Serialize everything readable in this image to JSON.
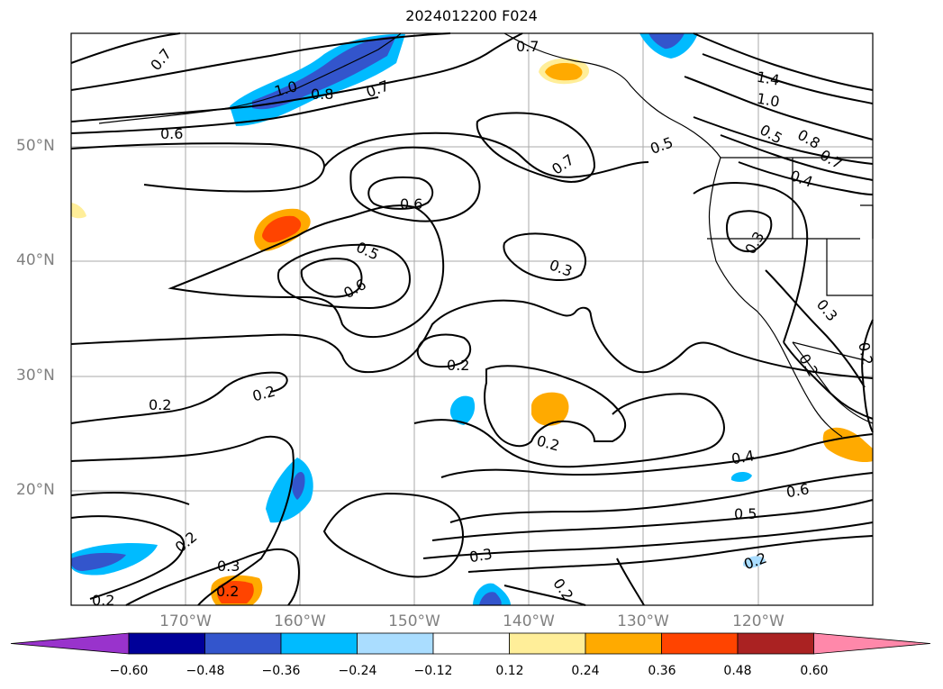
{
  "title": "2024012200 F024",
  "lat_ticks": [
    "50°N",
    "40°N",
    "30°N",
    "20°N"
  ],
  "lon_ticks": [
    "170°W",
    "160°W",
    "150°W",
    "140°W",
    "130°W",
    "120°W"
  ],
  "colorbar": {
    "labels": [
      "−0.60",
      "−0.48",
      "−0.36",
      "−0.24",
      "−0.12",
      "0.12",
      "0.24",
      "0.36",
      "0.48",
      "0.60"
    ],
    "colors": [
      "#9933cc",
      "#000099",
      "#3355cc",
      "#00bbff",
      "#aaddff",
      "#ffffff",
      "#ffee99",
      "#ffaa00",
      "#ff4400",
      "#aa2222",
      "#ff88aa"
    ]
  },
  "contour_labels": [
    {
      "text": "0.7"
    },
    {
      "text": "0.6"
    },
    {
      "text": "1.0"
    },
    {
      "text": "0.8"
    },
    {
      "text": "0.7"
    },
    {
      "text": "0.7"
    },
    {
      "text": "0.7"
    },
    {
      "text": "0.6"
    },
    {
      "text": "0.5"
    },
    {
      "text": "0.6"
    },
    {
      "text": "0.3"
    },
    {
      "text": "0.2"
    },
    {
      "text": "0.2"
    },
    {
      "text": "0.2"
    },
    {
      "text": "0.2"
    },
    {
      "text": "0.2"
    },
    {
      "text": "0.3"
    },
    {
      "text": "0.2"
    },
    {
      "text": "0.2"
    },
    {
      "text": "0.3"
    },
    {
      "text": "0.2"
    },
    {
      "text": "0.4"
    },
    {
      "text": "0.6"
    },
    {
      "text": "0.5"
    },
    {
      "text": "0.2"
    },
    {
      "text": "1.4"
    },
    {
      "text": "1.0"
    },
    {
      "text": "0.5"
    },
    {
      "text": "0.8"
    },
    {
      "text": "0.7"
    },
    {
      "text": "0.4"
    },
    {
      "text": "0.3"
    },
    {
      "text": "0.3"
    },
    {
      "text": "0.2"
    },
    {
      "text": "0.5"
    },
    {
      "text": "0.2"
    }
  ]
}
